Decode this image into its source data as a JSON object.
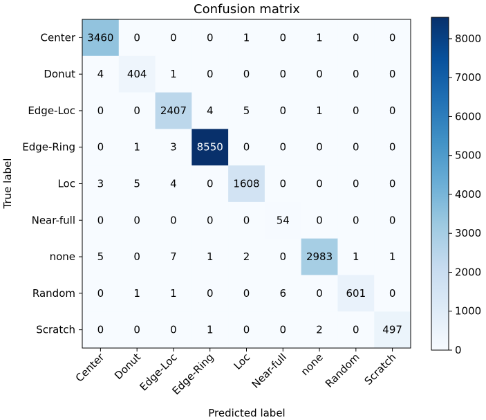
{
  "chart_data": {
    "type": "heatmap",
    "title": "Confusion matrix",
    "xlabel": "Predicted label",
    "ylabel": "True label",
    "x_categories": [
      "Center",
      "Donut",
      "Edge-Loc",
      "Edge-Ring",
      "Loc",
      "Near-full",
      "none",
      "Random",
      "Scratch"
    ],
    "y_categories": [
      "Center",
      "Donut",
      "Edge-Loc",
      "Edge-Ring",
      "Loc",
      "Near-full",
      "none",
      "Random",
      "Scratch"
    ],
    "values": [
      [
        3460,
        0,
        0,
        0,
        1,
        0,
        1,
        0,
        0
      ],
      [
        4,
        404,
        1,
        0,
        0,
        0,
        0,
        0,
        0
      ],
      [
        0,
        0,
        2407,
        4,
        5,
        0,
        1,
        0,
        0
      ],
      [
        0,
        1,
        3,
        8550,
        0,
        0,
        0,
        0,
        0
      ],
      [
        3,
        5,
        4,
        0,
        1608,
        0,
        0,
        0,
        0
      ],
      [
        0,
        0,
        0,
        0,
        0,
        54,
        0,
        0,
        0
      ],
      [
        5,
        0,
        7,
        1,
        2,
        0,
        2983,
        1,
        1
      ],
      [
        0,
        1,
        1,
        0,
        0,
        6,
        0,
        601,
        0
      ],
      [
        0,
        0,
        0,
        1,
        0,
        0,
        2,
        0,
        497
      ]
    ],
    "colormap": "Blues",
    "color_range": [
      0,
      8550
    ],
    "colorbar_ticks": [
      0,
      1000,
      2000,
      3000,
      4000,
      5000,
      6000,
      7000,
      8000
    ],
    "grid": false
  }
}
